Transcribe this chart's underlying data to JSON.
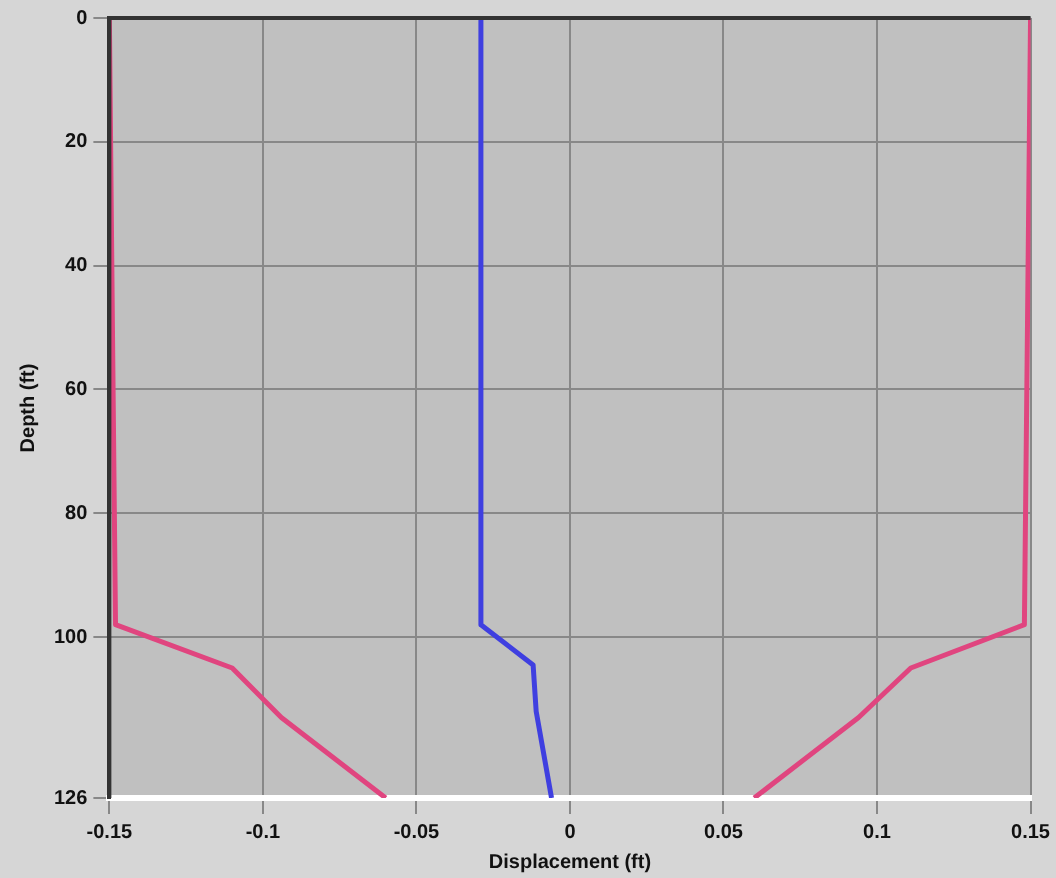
{
  "chart_data": {
    "type": "line",
    "xlabel": "Displacement (ft)",
    "ylabel": "Depth (ft)",
    "xlim": [
      -0.15,
      0.15
    ],
    "xticks": [
      -0.15,
      -0.1,
      -0.05,
      0,
      0.05,
      0.1,
      0.15
    ],
    "ylim": [
      126,
      0
    ],
    "yticks": [
      0,
      20,
      40,
      60,
      80,
      100,
      126
    ],
    "grid": true,
    "legend": false,
    "marker": "none",
    "line_style": "solid",
    "series": [
      {
        "color": "#e0457f",
        "x": [
          -0.15,
          -0.149,
          -0.148,
          -0.11,
          -0.094,
          -0.06
        ],
        "values": [
          0,
          50,
          98,
          105,
          113,
          126
        ]
      },
      {
        "color": "#e0457f",
        "x": [
          0.15,
          0.149,
          0.148,
          0.111,
          0.094,
          0.06
        ],
        "values": [
          0,
          50,
          98,
          105,
          113,
          126
        ]
      },
      {
        "color": "#3f3fe0",
        "x": [
          -0.029,
          -0.029,
          -0.012,
          -0.011,
          -0.006
        ],
        "values": [
          0,
          98,
          104.5,
          112,
          126
        ]
      }
    ]
  }
}
